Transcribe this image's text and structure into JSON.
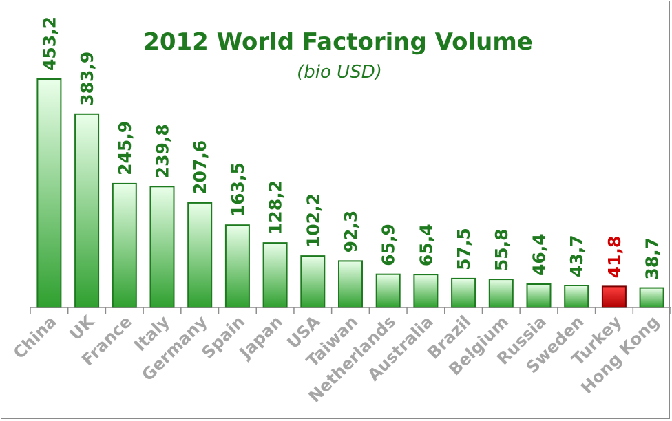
{
  "chart_data": {
    "type": "bar",
    "title": "2012 World Factoring Volume",
    "subtitle": "(bio USD)",
    "categories": [
      "China",
      "UK",
      "France",
      "Italy",
      "Germany",
      "Spain",
      "Japan",
      "USA",
      "Taiwan",
      "Netherlands",
      "Australia",
      "Brazil",
      "Belgium",
      "Russia",
      "Sweden",
      "Turkey",
      "Hong Kong"
    ],
    "values": [
      453.2,
      383.9,
      245.9,
      239.8,
      207.6,
      163.5,
      128.2,
      102.2,
      92.3,
      65.9,
      65.4,
      57.5,
      55.8,
      46.4,
      43.7,
      41.8,
      38.7
    ],
    "value_labels": [
      "453,2",
      "383,9",
      "245,9",
      "239,8",
      "207,6",
      "163,5",
      "128,2",
      "102,2",
      "92,3",
      "65,9",
      "65,4",
      "57,5",
      "55,8",
      "46,4",
      "43,7",
      "41,8",
      "38,7"
    ],
    "highlight_category": "Turkey",
    "ylim": [
      0,
      453.2
    ],
    "grid": false,
    "legend": "none",
    "colors": {
      "bar_top": "#eaffea",
      "bar_bottom": "#2fa02f",
      "bar_stroke": "#1e7a1e",
      "highlight_top": "#ff4040",
      "highlight_bottom": "#b00000",
      "highlight_stroke": "#7a0000",
      "label": "#1f7a1f",
      "highlight_label": "#d00000",
      "category_label": "#a6a6a6",
      "axis": "#8c8c8c"
    }
  }
}
